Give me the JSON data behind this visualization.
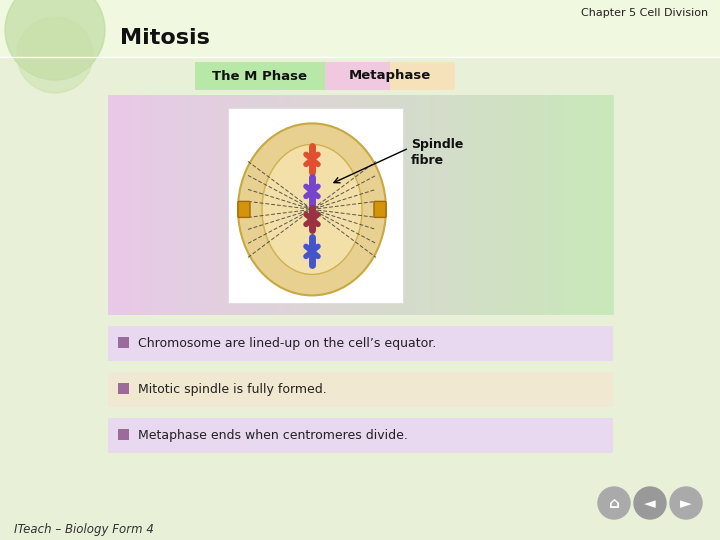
{
  "title_top_right": "Chapter 5 Cell Division",
  "title_main": "Mitosis",
  "tab1_text": "The M Phase",
  "tab2_text": "Metaphase",
  "tab1_color": "#b8e8a8",
  "tab2_color": "#f0d8e8",
  "tab2_color2": "#f8f0b0",
  "bullet_items": [
    "Chromosome are lined-up on the cell’s equator.",
    "Mitotic spindle is fully formed.",
    "Metaphase ends when centromeres divide."
  ],
  "bullet_bg1": "#e8d8f0",
  "bullet_bg2": "#f0e8d0",
  "bullet_bg3": "#e8d8f0",
  "bullet_icon_color": "#9b6b9b",
  "spindle_label": "Spindle\nfibre",
  "footer_text": "ITeach – Biology Form 4",
  "bg_color": "#e8f0d8",
  "header_bg": "#f0f8e0",
  "panel_bg_left": "#e8c8e8",
  "panel_bg_right": "#d0e8c0"
}
